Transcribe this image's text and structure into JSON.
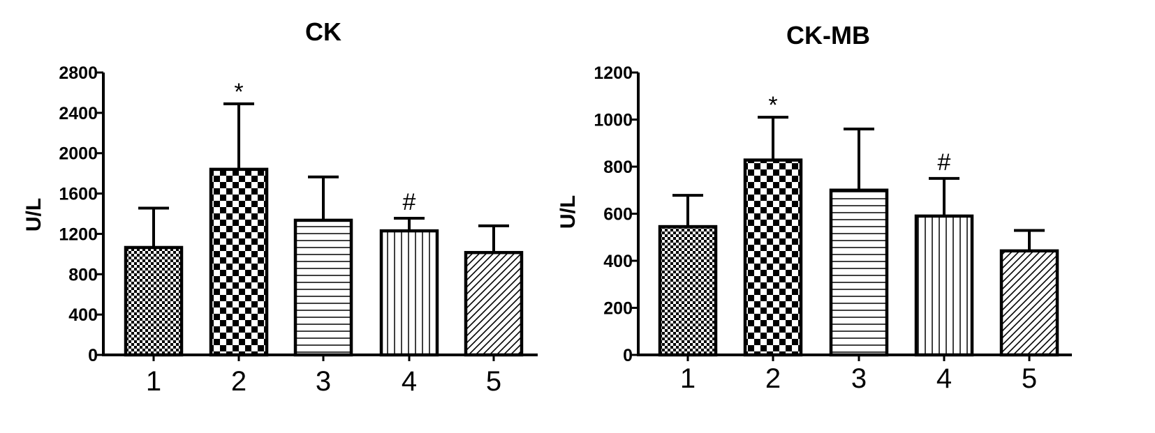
{
  "chart_data": [
    {
      "type": "bar",
      "title": "CK",
      "xlabel": "",
      "ylabel": "U/L",
      "ylim": [
        0,
        2800
      ],
      "yticks": [
        0,
        400,
        800,
        1200,
        1600,
        2000,
        2400,
        2800
      ],
      "categories": [
        "1",
        "2",
        "3",
        "4",
        "5"
      ],
      "values": [
        1065,
        1840,
        1335,
        1230,
        1015
      ],
      "errors": [
        390,
        650,
        430,
        125,
        265
      ],
      "annotations": [
        "",
        "*",
        "",
        "#",
        ""
      ],
      "patterns": [
        "fine-checker",
        "coarse-checker",
        "horizontal-lines",
        "vertical-lines",
        "diagonal-lines"
      ],
      "grid": false
    },
    {
      "type": "bar",
      "title": "CK-MB",
      "xlabel": "",
      "ylabel": "U/L",
      "ylim": [
        0,
        1200
      ],
      "yticks": [
        0,
        200,
        400,
        600,
        800,
        1000,
        1200
      ],
      "categories": [
        "1",
        "2",
        "3",
        "4",
        "5"
      ],
      "values": [
        545,
        828,
        700,
        590,
        442
      ],
      "errors": [
        133,
        182,
        260,
        160,
        87
      ],
      "annotations": [
        "",
        "*",
        "",
        "#",
        ""
      ],
      "patterns": [
        "fine-checker",
        "coarse-checker",
        "horizontal-lines",
        "vertical-lines",
        "diagonal-lines"
      ],
      "grid": false
    }
  ],
  "colors": {
    "ink": "#000000",
    "background": "#ffffff"
  }
}
